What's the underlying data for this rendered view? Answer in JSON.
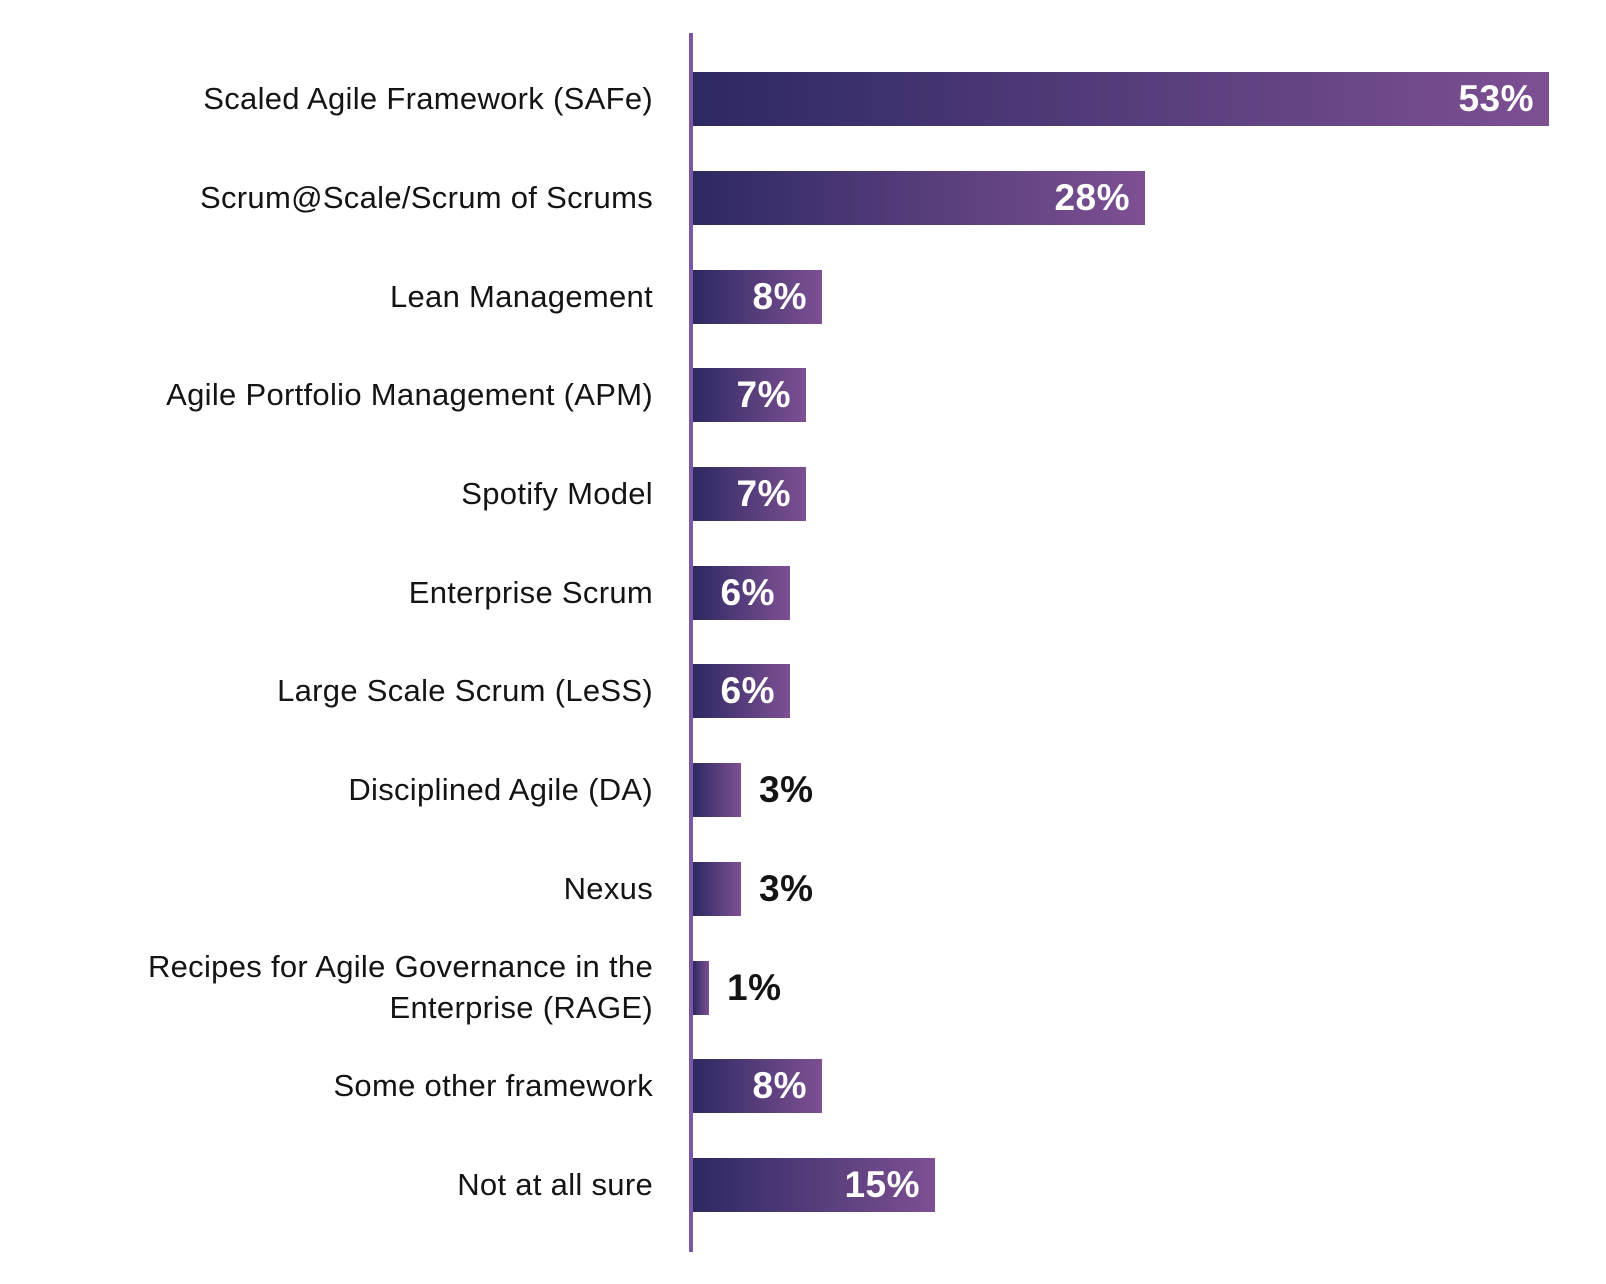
{
  "chart_data": {
    "type": "bar",
    "orientation": "horizontal",
    "title": "",
    "xlabel": "",
    "ylabel": "",
    "grid": false,
    "legend": false,
    "xlim_implied": [
      0,
      53
    ],
    "categories": [
      "Scaled Agile Framework (SAFe)",
      "Scrum@Scale/Scrum of Scrums",
      "Lean Management",
      "Agile Portfolio Management (APM)",
      "Spotify Model",
      "Enterprise Scrum",
      "Large Scale Scrum (LeSS)",
      "Disciplined Agile (DA)",
      "Nexus",
      "Recipes for Agile Governance in the Enterprise (RAGE)",
      "Some other framework",
      "Not at all sure"
    ],
    "values": [
      53,
      28,
      8,
      7,
      7,
      6,
      6,
      3,
      3,
      1,
      8,
      15
    ],
    "value_labels": [
      "53%",
      "28%",
      "8%",
      "7%",
      "7%",
      "6%",
      "6%",
      "3%",
      "3%",
      "1%",
      "8%",
      "15%"
    ],
    "label_inside_min_value": 6,
    "colors": {
      "bar_gradient_start": "#2d2961",
      "bar_gradient_end": "#7d5093",
      "axis_line": "#7e57a2",
      "category_text": "#141414",
      "value_text_inside": "#ffffff",
      "value_text_outside": "#141414"
    }
  }
}
